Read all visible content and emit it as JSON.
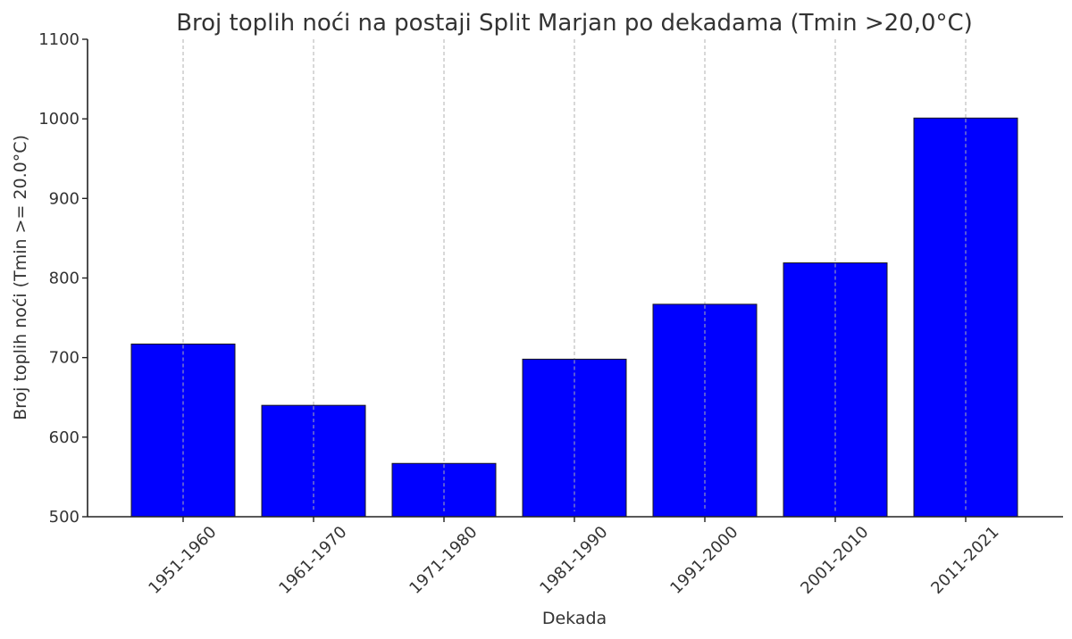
{
  "chart_data": {
    "type": "bar",
    "title": "Broj toplih noći na postaji Split Marjan po dekadama (Tmin >20,0°C)",
    "xlabel": "Dekada",
    "ylabel": "Broj toplih noći (Tmin >= 20.0°C)",
    "categories": [
      "1951-1960",
      "1961-1970",
      "1971-1980",
      "1981-1990",
      "1991-2000",
      "2001-2010",
      "2011-2021"
    ],
    "values": [
      717,
      640,
      567,
      698,
      767,
      819,
      1001
    ],
    "ylim": [
      500,
      1100
    ],
    "yticks": [
      500,
      600,
      700,
      800,
      900,
      1000,
      1100
    ],
    "ytick_labels": [
      "500",
      "600",
      "700",
      "800",
      "900",
      "1000",
      "1100"
    ],
    "grid": "x-dashed",
    "bar_color": "#0000ff"
  }
}
